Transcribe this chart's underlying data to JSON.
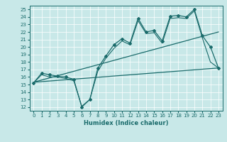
{
  "title": "",
  "xlabel": "Humidex (Indice chaleur)",
  "bg_color": "#c8e8e8",
  "line_color": "#1a6b6b",
  "xlim": [
    -0.5,
    23.5
  ],
  "ylim": [
    11.5,
    25.5
  ],
  "yticks": [
    12,
    13,
    14,
    15,
    16,
    17,
    18,
    19,
    20,
    21,
    22,
    23,
    24,
    25
  ],
  "xticks": [
    0,
    1,
    2,
    3,
    4,
    5,
    6,
    7,
    8,
    9,
    10,
    11,
    12,
    13,
    14,
    15,
    16,
    17,
    18,
    19,
    20,
    21,
    22,
    23
  ],
  "line1_x": [
    0,
    1,
    2,
    3,
    4,
    5,
    6,
    7,
    8,
    9,
    10,
    11,
    12,
    13,
    14,
    15,
    16,
    17,
    18,
    19,
    20,
    21,
    22,
    23
  ],
  "line1_y": [
    15.2,
    16.5,
    16.3,
    16.1,
    16.0,
    15.7,
    12.0,
    13.0,
    17.2,
    18.8,
    20.3,
    21.1,
    20.5,
    23.8,
    22.0,
    22.2,
    20.8,
    24.1,
    24.2,
    24.0,
    25.0,
    21.5,
    20.0,
    17.2
  ],
  "line2_x": [
    0,
    1,
    2,
    3,
    4,
    5,
    6,
    7,
    8,
    9,
    10,
    11,
    12,
    13,
    14,
    15,
    16,
    17,
    18,
    19,
    20,
    21,
    22,
    23
  ],
  "line2_y": [
    15.2,
    16.3,
    16.0,
    16.0,
    15.8,
    15.5,
    12.1,
    13.0,
    16.8,
    18.5,
    19.8,
    20.8,
    20.3,
    23.5,
    21.8,
    21.9,
    20.5,
    23.8,
    23.9,
    23.8,
    24.8,
    21.2,
    18.0,
    17.2
  ],
  "line3_x": [
    0,
    23
  ],
  "line3_y": [
    15.3,
    17.2
  ],
  "line4_x": [
    0,
    23
  ],
  "line4_y": [
    15.3,
    22.0
  ],
  "xlabel_fontsize": 6,
  "tick_fontsize": 5
}
